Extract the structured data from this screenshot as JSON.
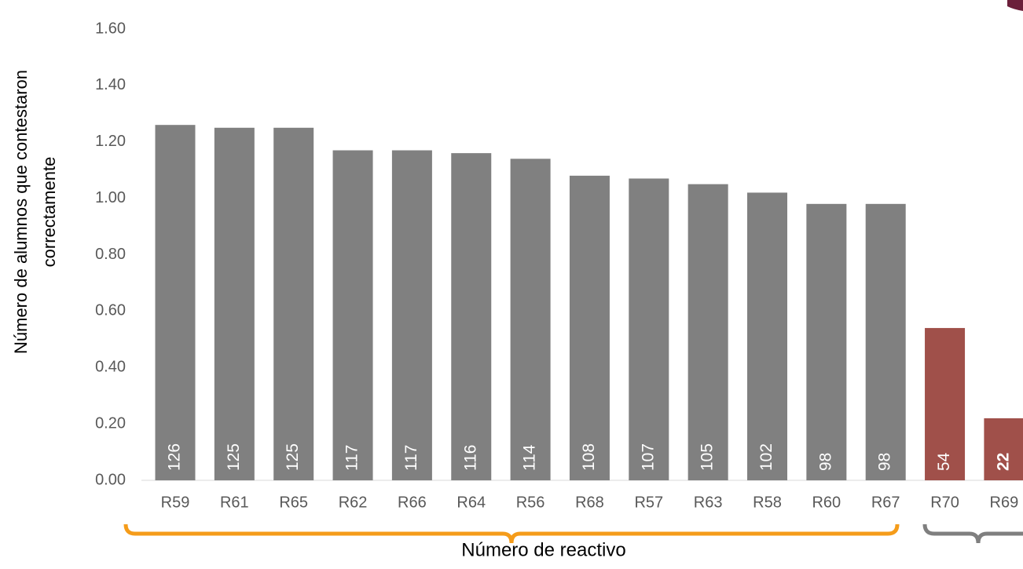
{
  "chart_data": {
    "type": "bar",
    "y_label": [
      "Número de alumnos que contestaron",
      "correctamente"
    ],
    "x_label": "Número de reactivo",
    "categories": [
      "R59",
      "R61",
      "R65",
      "R62",
      "R66",
      "R64",
      "R56",
      "R68",
      "R57",
      "R63",
      "R58",
      "R60",
      "R67",
      "R70",
      "R69"
    ],
    "values": [
      1.26,
      1.25,
      1.25,
      1.17,
      1.17,
      1.16,
      1.14,
      1.08,
      1.07,
      1.05,
      1.02,
      0.98,
      0.98,
      0.54,
      0.22
    ],
    "value_labels": [
      "126",
      "125",
      "125",
      "117",
      "117",
      "116",
      "114",
      "108",
      "107",
      "105",
      "102",
      "98",
      "98",
      "54",
      "22"
    ],
    "colors": [
      "#808080",
      "#808080",
      "#808080",
      "#808080",
      "#808080",
      "#808080",
      "#808080",
      "#808080",
      "#808080",
      "#808080",
      "#808080",
      "#808080",
      "#808080",
      "#a0504a",
      "#a0504a"
    ],
    "ylim": [
      0,
      1.6
    ],
    "yticks": [
      {
        "value": 0,
        "label": "0.00"
      },
      {
        "value": 0.2,
        "label": "0.20"
      },
      {
        "value": 0.4,
        "label": "0.40"
      },
      {
        "value": 0.6,
        "label": "0.60"
      },
      {
        "value": 0.8,
        "label": "0.80"
      },
      {
        "value": 1.0,
        "label": "1.00"
      },
      {
        "value": 1.2,
        "label": "1.20"
      },
      {
        "value": 1.4,
        "label": "1.40"
      },
      {
        "value": 1.6,
        "label": "1.60"
      }
    ],
    "grid": false
  }
}
